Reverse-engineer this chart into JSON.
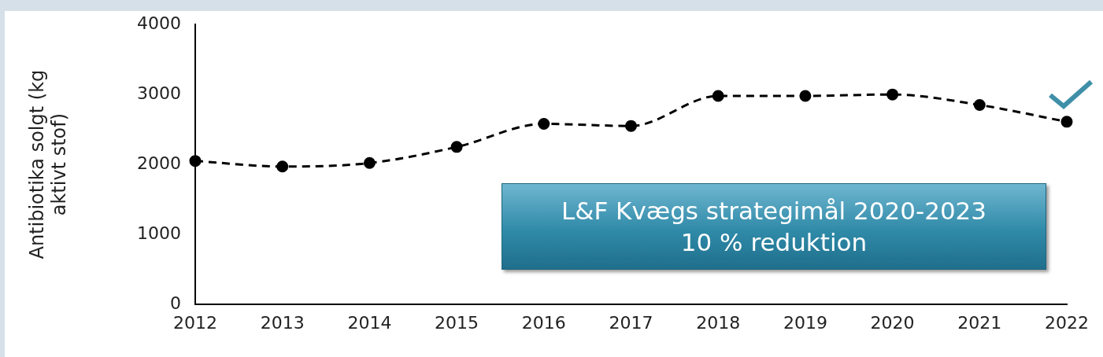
{
  "chart_data": {
    "type": "line",
    "ylabel": "Antibiotika solgt (kg\naktivt stof)",
    "categories": [
      "2012",
      "2013",
      "2014",
      "2015",
      "2016",
      "2017",
      "2018",
      "2019",
      "2020",
      "2021",
      "2022"
    ],
    "values": [
      2050,
      1970,
      2020,
      2250,
      2580,
      2550,
      2980,
      2980,
      3000,
      2850,
      2610
    ],
    "color": "#000000",
    "ylim": [
      0,
      4000
    ],
    "yticks": [
      0,
      1000,
      2000,
      3000,
      4000
    ],
    "grid": false,
    "legend": false,
    "marker": "circle",
    "line_style": "dashed",
    "annotations": [
      "L&F Kvægs strategimål 2020-2023\n10 % reduktion"
    ]
  }
}
